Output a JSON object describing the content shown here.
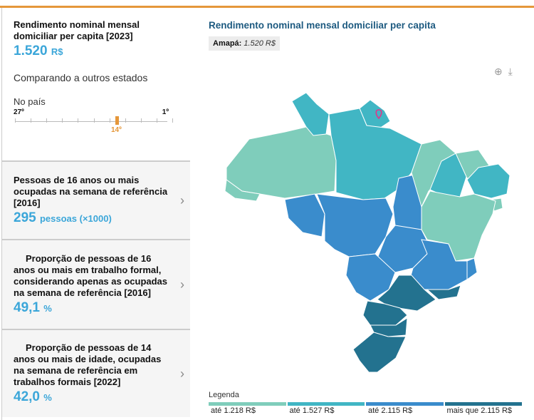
{
  "summary": {
    "title": "Rendimento nominal mensal domiciliar per capita [2023]",
    "value": "1.520",
    "unit": "R$",
    "compare": "Comparando a outros estados",
    "scope": "No país",
    "rank_worst": "27º",
    "rank_best": "1º",
    "rank": "14º",
    "rank_value": 14,
    "rank_total": 27
  },
  "cards": [
    {
      "title": "Pessoas de 16 anos ou mais ocupadas na semana de referência [2016]",
      "value": "295",
      "unit": "pessoas (×1000)"
    },
    {
      "title": "Proporção de pessoas de 16 anos ou mais em trabalho formal, considerando apenas as ocupadas na semana de referência [2016]",
      "value": "49,1",
      "unit": "%"
    },
    {
      "title": "Proporção de pessoas de 14 anos ou mais de idade, ocupadas na semana de referência em trabalhos formais [2022]",
      "value": "42,0",
      "unit": "%"
    }
  ],
  "map": {
    "title": "Rendimento nominal mensal domiciliar per capita",
    "tooltip_state": "Amapá:",
    "tooltip_value": "1.520 R$",
    "zoom_icon": "zoom-in-icon",
    "download_icon": "download-icon",
    "selected": "AP",
    "states": {
      "AM": 0,
      "AC": 0,
      "RR": 1,
      "AP": 1,
      "PA": 1,
      "RO": 2,
      "MT": 2,
      "TO": 2,
      "MA": 0,
      "PI": 1,
      "CE": 0,
      "NE": 1,
      "SE": 0,
      "BA": 0,
      "GO": 2,
      "MS": 2,
      "MG": 2,
      "ES": 2,
      "RJ": 3,
      "SP": 3,
      "PR": 3,
      "SC": 3,
      "RS": 3
    }
  },
  "legend": {
    "title": "Legenda",
    "items": [
      {
        "label": "até 1.218 R$",
        "color": "#7fcdbb"
      },
      {
        "label": "até 1.527 R$",
        "color": "#41b6c4"
      },
      {
        "label": "até 2.115 R$",
        "color": "#3a8ccc"
      },
      {
        "label": "mais que 2.115 R$",
        "color": "#23728f"
      }
    ]
  }
}
